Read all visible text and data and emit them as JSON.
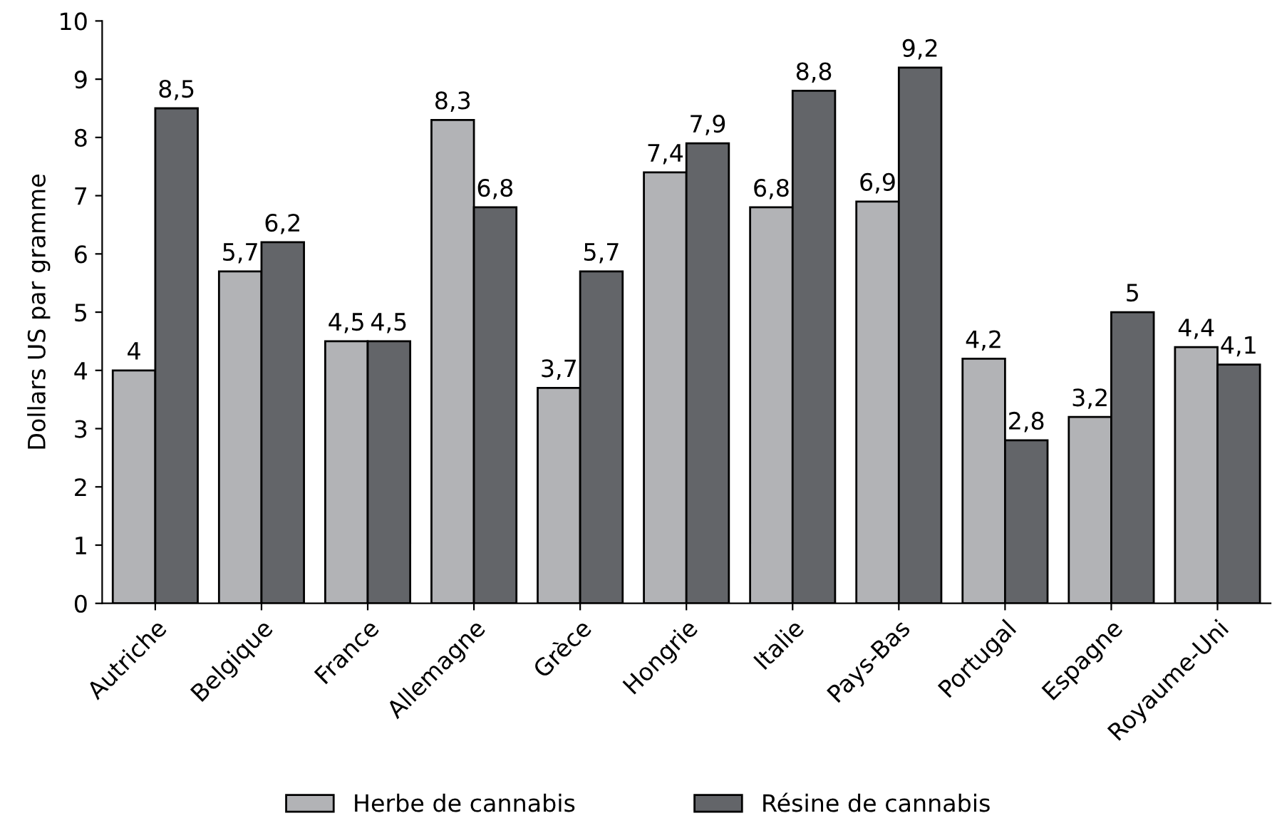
{
  "chart_data": {
    "type": "bar",
    "ylabel": "Dollars US par gramme",
    "categories": [
      "Autriche",
      "Belgique",
      "France",
      "Allemagne",
      "Grèce",
      "Hongrie",
      "Italie",
      "Pays-Bas",
      "Portugal",
      "Espagne",
      "Royaume-Uni"
    ],
    "series": [
      {
        "name": "Herbe de cannabis",
        "color": "#b2b3b6",
        "values": [
          4,
          5.7,
          4.5,
          8.3,
          3.7,
          7.4,
          6.8,
          6.9,
          4.2,
          3.2,
          4.4
        ],
        "value_labels": [
          "4",
          "5,7",
          "4,5",
          "8,3",
          "3,7",
          "7,4",
          "6,8",
          "6,9",
          "4,2",
          "3,2",
          "4,4"
        ]
      },
      {
        "name": "Résine de cannabis",
        "color": "#636569",
        "values": [
          8.5,
          6.2,
          4.5,
          6.8,
          5.7,
          7.9,
          8.8,
          9.2,
          2.8,
          5,
          4.1
        ],
        "value_labels": [
          "8,5",
          "6,2",
          "4,5",
          "6,8",
          "5,7",
          "7,9",
          "8,8",
          "9,2",
          "2,8",
          "5",
          "4,1"
        ]
      }
    ],
    "ylim": [
      0,
      10
    ],
    "yticks": [
      0,
      1,
      2,
      3,
      4,
      5,
      6,
      7,
      8,
      9,
      10
    ],
    "grid": false,
    "legend": "bottom"
  }
}
